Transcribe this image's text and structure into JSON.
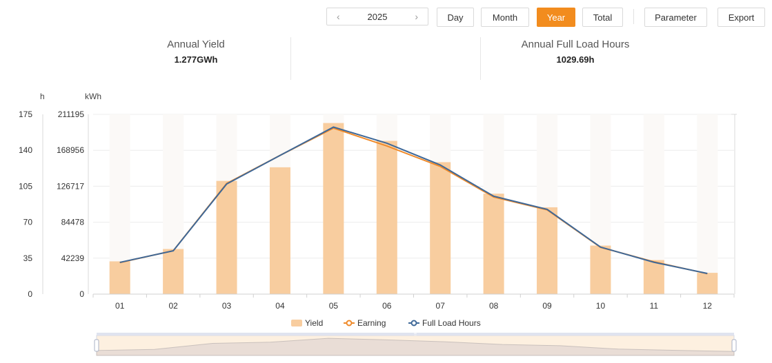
{
  "toolbar": {
    "year": "2025",
    "prev_icon": "chevron-left-icon",
    "next_icon": "chevron-right-icon",
    "buttons": {
      "day": "Day",
      "month": "Month",
      "year": "Year",
      "total": "Total",
      "parameter": "Parameter",
      "export": "Export"
    },
    "active": "Year",
    "accent_color": "#f28c1e"
  },
  "stats": {
    "annual_yield": {
      "label": "Annual Yield",
      "value": "1.277GWh"
    },
    "full_load_hours": {
      "label": "Annual Full Load Hours",
      "value": "1029.69h"
    }
  },
  "chart_data": {
    "type": "bar",
    "categories": [
      "01",
      "02",
      "03",
      "04",
      "05",
      "06",
      "07",
      "08",
      "09",
      "10",
      "11",
      "12"
    ],
    "left_axis": {
      "unit": "h",
      "ticks": [
        "0",
        "35",
        "70",
        "105",
        "140",
        "175"
      ],
      "ylim": [
        0,
        175
      ]
    },
    "right_axis": {
      "unit": "kWh",
      "ticks": [
        "0",
        "42239",
        "84478",
        "126717",
        "168956",
        "211195"
      ],
      "ylim": [
        0,
        211195
      ]
    },
    "series": [
      {
        "name": "Yield",
        "type": "bar",
        "axis": "kWh",
        "color": "#f8cd9f",
        "values": [
          38500,
          53000,
          133000,
          149000,
          201000,
          180000,
          155000,
          118000,
          102000,
          57000,
          40000,
          25000
        ]
      },
      {
        "name": "Earning",
        "type": "line",
        "axis": "kWh",
        "color": "#ef8a2a",
        "values": [
          37000,
          51000,
          130000,
          163000,
          195000,
          174000,
          150000,
          114000,
          99000,
          55000,
          38000,
          24000
        ]
      },
      {
        "name": "Full Load Hours",
        "type": "line",
        "axis": "h",
        "color": "#3e6898",
        "values": [
          30.9,
          42.2,
          107.2,
          135.0,
          162.6,
          146.9,
          125.7,
          95.3,
          82.5,
          45.8,
          31.0,
          20.1
        ]
      }
    ],
    "grid": true,
    "legend_position": "bottom"
  },
  "legend": [
    "Yield",
    "Earning",
    "Full Load Hours"
  ],
  "slider": {
    "handle_label": "☰"
  }
}
